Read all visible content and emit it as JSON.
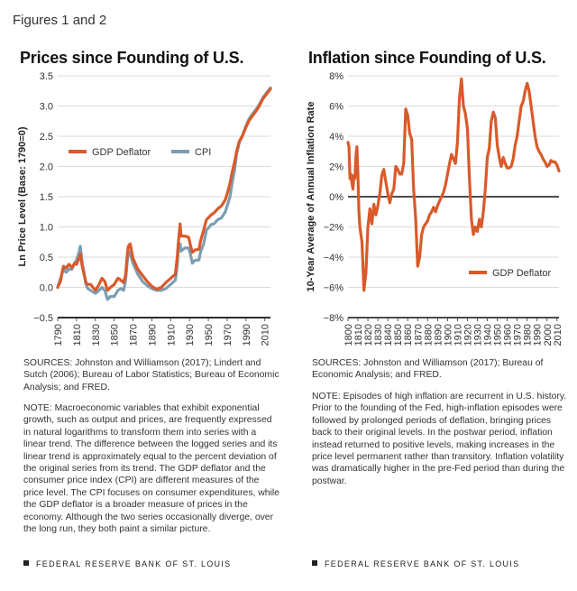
{
  "figure_label": "Figures 1 and 2",
  "footer_text": "FEDERAL RESERVE BANK OF ST. LOUIS",
  "colors": {
    "gdp": "#d95a2a",
    "cpi": "#7d9db2",
    "grid": "#cfcfcf",
    "zero": "#111111"
  },
  "chart_data": [
    {
      "type": "line",
      "title": "Prices since Founding of U.S.",
      "ylabel": "Ln Price Level (Base: 1790=0)",
      "xlabel": "",
      "xlim": [
        1790,
        2016
      ],
      "ylim": [
        -0.5,
        3.5
      ],
      "yticks": [
        -0.5,
        0.0,
        0.5,
        1.0,
        1.5,
        2.0,
        2.5,
        3.0,
        3.5
      ],
      "ytick_labels": [
        "−0.5",
        "0.0",
        "0.5",
        "1.0",
        "1.5",
        "2.0",
        "2.5",
        "3.0",
        "3.5"
      ],
      "xticks": [
        1790,
        1810,
        1830,
        1850,
        1870,
        1890,
        1910,
        1930,
        1950,
        1970,
        1990,
        2010
      ],
      "grid": true,
      "legend_position": "upper-left",
      "series": [
        {
          "name": "GDP Deflator",
          "color_key": "gdp",
          "x": [
            1790,
            1793,
            1796,
            1799,
            1802,
            1805,
            1808,
            1810,
            1813,
            1814,
            1816,
            1818,
            1820,
            1822,
            1825,
            1830,
            1834,
            1837,
            1840,
            1843,
            1846,
            1850,
            1854,
            1857,
            1860,
            1862,
            1864,
            1865,
            1867,
            1870,
            1875,
            1880,
            1885,
            1890,
            1895,
            1900,
            1905,
            1910,
            1915,
            1917,
            1918,
            1920,
            1921,
            1925,
            1929,
            1931,
            1933,
            1936,
            1940,
            1942,
            1945,
            1948,
            1950,
            1953,
            1956,
            1960,
            1964,
            1968,
            1970,
            1973,
            1975,
            1978,
            1980,
            1983,
            1986,
            1990,
            1993,
            1996,
            2000,
            2004,
            2008,
            2012,
            2016
          ],
          "values": [
            0.0,
            0.1,
            0.35,
            0.32,
            0.38,
            0.33,
            0.4,
            0.38,
            0.5,
            0.55,
            0.35,
            0.22,
            0.08,
            0.05,
            0.05,
            -0.05,
            0.05,
            0.15,
            0.1,
            -0.05,
            0.0,
            0.05,
            0.15,
            0.12,
            0.08,
            0.2,
            0.55,
            0.68,
            0.72,
            0.48,
            0.3,
            0.2,
            0.1,
            0.02,
            -0.03,
            0.0,
            0.08,
            0.15,
            0.22,
            0.5,
            0.72,
            1.05,
            0.85,
            0.85,
            0.83,
            0.7,
            0.58,
            0.62,
            0.63,
            0.78,
            0.95,
            1.12,
            1.15,
            1.2,
            1.23,
            1.3,
            1.35,
            1.45,
            1.55,
            1.72,
            1.88,
            2.08,
            2.25,
            2.42,
            2.5,
            2.65,
            2.75,
            2.82,
            2.9,
            3.0,
            3.12,
            3.2,
            3.28
          ]
        },
        {
          "name": "CPI",
          "color_key": "cpi",
          "x": [
            1790,
            1793,
            1796,
            1799,
            1802,
            1805,
            1808,
            1810,
            1813,
            1814,
            1816,
            1818,
            1820,
            1822,
            1825,
            1830,
            1834,
            1837,
            1840,
            1843,
            1846,
            1850,
            1854,
            1857,
            1860,
            1862,
            1864,
            1865,
            1867,
            1870,
            1875,
            1880,
            1885,
            1890,
            1895,
            1900,
            1905,
            1910,
            1915,
            1917,
            1918,
            1920,
            1921,
            1925,
            1929,
            1931,
            1933,
            1936,
            1940,
            1942,
            1945,
            1948,
            1950,
            1953,
            1956,
            1960,
            1964,
            1968,
            1970,
            1973,
            1975,
            1978,
            1980,
            1983,
            1986,
            1990,
            1993,
            1996,
            2000,
            2004,
            2008,
            2012,
            2016
          ],
          "values": [
            0.0,
            0.15,
            0.3,
            0.25,
            0.3,
            0.3,
            0.4,
            0.45,
            0.6,
            0.68,
            0.4,
            0.25,
            0.05,
            -0.02,
            -0.05,
            -0.1,
            -0.05,
            0.0,
            -0.05,
            -0.2,
            -0.15,
            -0.15,
            -0.05,
            -0.02,
            -0.05,
            0.1,
            0.45,
            0.6,
            0.55,
            0.4,
            0.22,
            0.1,
            0.03,
            -0.02,
            -0.05,
            -0.05,
            -0.02,
            0.05,
            0.12,
            0.35,
            0.6,
            0.72,
            0.6,
            0.65,
            0.65,
            0.55,
            0.4,
            0.45,
            0.45,
            0.6,
            0.72,
            0.95,
            0.98,
            1.04,
            1.05,
            1.12,
            1.15,
            1.25,
            1.35,
            1.5,
            1.7,
            1.95,
            2.2,
            2.4,
            2.5,
            2.67,
            2.78,
            2.85,
            2.93,
            3.02,
            3.14,
            3.22,
            3.3
          ]
        }
      ]
    },
    {
      "type": "line",
      "title": "Inflation since Founding of U.S.",
      "ylabel": "10-Year Average of Annual Inflation Rate",
      "xlabel": "",
      "xlim": [
        1800,
        2012
      ],
      "ylim": [
        -8,
        8
      ],
      "yticks": [
        -8,
        -6,
        -4,
        -2,
        0,
        2,
        4,
        6,
        8
      ],
      "ytick_labels": [
        "−8%",
        "−6%",
        "−4%",
        "−2%",
        "0%",
        "2%",
        "4%",
        "6%",
        "8%"
      ],
      "xticks": [
        1800,
        1810,
        1820,
        1830,
        1840,
        1850,
        1860,
        1870,
        1880,
        1890,
        1900,
        1910,
        1920,
        1930,
        1940,
        1950,
        1960,
        1970,
        1980,
        1990,
        2000,
        2010
      ],
      "grid": true,
      "legend_position": "lower-right",
      "series": [
        {
          "name": "GDP Deflator",
          "color_key": "gdp",
          "x": [
            1800,
            1801,
            1802,
            1803,
            1804,
            1805,
            1806,
            1807,
            1808,
            1809,
            1810,
            1811,
            1812,
            1813,
            1814,
            1815,
            1816,
            1818,
            1820,
            1822,
            1824,
            1826,
            1828,
            1830,
            1832,
            1834,
            1836,
            1838,
            1840,
            1842,
            1844,
            1846,
            1848,
            1850,
            1852,
            1854,
            1856,
            1858,
            1860,
            1862,
            1864,
            1866,
            1868,
            1870,
            1872,
            1874,
            1876,
            1878,
            1880,
            1882,
            1884,
            1886,
            1888,
            1890,
            1892,
            1894,
            1896,
            1898,
            1900,
            1902,
            1904,
            1906,
            1908,
            1910,
            1912,
            1914,
            1916,
            1918,
            1920,
            1922,
            1924,
            1926,
            1928,
            1930,
            1932,
            1934,
            1936,
            1938,
            1940,
            1942,
            1944,
            1946,
            1948,
            1950,
            1952,
            1954,
            1956,
            1958,
            1960,
            1962,
            1964,
            1966,
            1968,
            1970,
            1972,
            1974,
            1976,
            1978,
            1980,
            1982,
            1984,
            1986,
            1988,
            1990,
            1992,
            1994,
            1996,
            1998,
            2000,
            2002,
            2004,
            2006,
            2008,
            2010,
            2012
          ],
          "values": [
            3.6,
            3.3,
            1.2,
            1.5,
            0.9,
            0.5,
            1.4,
            1.2,
            2.7,
            3.3,
            1.5,
            -1.0,
            -2.0,
            -2.5,
            -3.0,
            -4.6,
            -6.2,
            -5.0,
            -2.0,
            -0.8,
            -1.8,
            -0.5,
            -1.2,
            -0.6,
            0.2,
            1.4,
            1.8,
            1.0,
            0.2,
            -0.4,
            0.2,
            0.5,
            2.0,
            1.8,
            1.5,
            1.5,
            2.2,
            5.8,
            5.4,
            4.2,
            3.8,
            0.5,
            -1.5,
            -4.6,
            -4.0,
            -2.5,
            -2.0,
            -1.8,
            -1.6,
            -1.2,
            -1.0,
            -0.7,
            -1.0,
            -0.6,
            -0.3,
            0.0,
            0.3,
            0.8,
            1.5,
            2.2,
            2.8,
            2.5,
            2.2,
            3.6,
            6.5,
            7.8,
            6.0,
            5.5,
            4.5,
            1.2,
            -1.5,
            -2.5,
            -2.0,
            -2.3,
            -1.5,
            -2.0,
            -1.0,
            0.5,
            2.6,
            3.2,
            5.0,
            5.6,
            5.2,
            3.4,
            2.6,
            2.0,
            2.6,
            2.2,
            1.9,
            1.9,
            2.0,
            2.5,
            3.4,
            4.0,
            5.0,
            6.0,
            6.3,
            7.0,
            7.5,
            7.0,
            6.0,
            5.0,
            4.0,
            3.3,
            3.0,
            2.8,
            2.5,
            2.3,
            2.0,
            2.1,
            2.4,
            2.3,
            2.3,
            2.1,
            1.7
          ]
        }
      ]
    }
  ],
  "left": {
    "sources": "SOURCES: Johnston and Williamson (2017); Lindert and Sutch (2006); Bureau of Labor Statistics; Bureau of Economic Analysis; and FRED.",
    "note": "NOTE: Macroeconomic variables that exhibit exponential growth, such as output and prices, are frequently expressed in natural logarithms to transform them into series with a linear trend. The difference between the logged series and its linear trend is approximately equal to the percent deviation of the original series from its trend. The GDP deflator and the consumer price index (CPI) are different measures of the price level. The CPI focuses on consumer expenditures, while the GDP deflator is a broader measure of prices in the economy. Although the two series occasionally diverge, over the long run, they both paint a similar picture."
  },
  "right": {
    "sources": "SOURCES: Johnston and Williamson (2017); Bureau of Economic Analysis; and FRED.",
    "note": "NOTE: Episodes of high inflation are recurrent in U.S. history. Prior to the founding of the Fed, high-inflation episodes were followed by prolonged periods of deflation, bringing prices back to their original levels. In the postwar period, inflation instead returned to positive levels, making increases in the price level permanent rather than transitory. Inflation volatility was dramatically higher in the pre-Fed period than during the postwar."
  }
}
